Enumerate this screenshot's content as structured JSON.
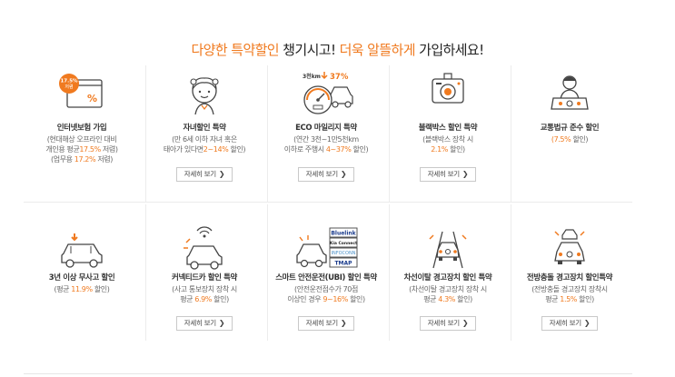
{
  "headline": {
    "part1": "다양한 특약할인",
    "part2": " 챙기시고! ",
    "part3": "더욱 알뜰하게",
    "part4": " 가입하세요!"
  },
  "colors": {
    "accent": "#f07a1f",
    "icon": "#444444"
  },
  "button_label": "자세히 보기",
  "row1": [
    {
      "icon": "internet-discount-badge-icon",
      "badge_line1": "17.5%",
      "badge_line2": "저렴",
      "title": "인터넷보험 가입",
      "d1_a": "(현대해상 오프라인 대비",
      "d2_a": "개인용 평균",
      "d2_b": "17.5%",
      "d2_c": " 저렴)",
      "d3_a": "(업무용 ",
      "d3_b": "17.2%",
      "d3_c": " 저렴)"
    },
    {
      "icon": "child-icon",
      "title": "자녀할인 특약",
      "d1_a": "(만 6세 이하 자녀 혹은",
      "d2_a": "태아가 있다면",
      "d2_b": "2~14%",
      "d2_c": " 할인)",
      "button": true
    },
    {
      "icon": "eco-mileage-car-icon",
      "eco_label": "3천km",
      "eco_pct": "37%",
      "title": "ECO 마일리지 특약",
      "d1_a": "(연간 3천~1만5천km",
      "d2_a": "이하로 주행시 ",
      "d2_b": "4~37%",
      "d2_c": " 할인)",
      "button": true
    },
    {
      "icon": "dashcam-icon",
      "title": "블랙박스 할인 특약",
      "d1_a": "(블랙박스 장착 시",
      "d2_b": "2.1%",
      "d2_c": " 할인)",
      "button": true
    },
    {
      "icon": "traffic-law-driver-icon",
      "title": "교통법규 준수 할인",
      "d1_b": "(7.5%",
      "d1_c": " 할인)"
    }
  ],
  "row2": [
    {
      "icon": "no-accident-car-icon",
      "title": "3년 이상 무사고 할인",
      "d1_a": "(평균 ",
      "d1_b": "11.9%",
      "d1_c": " 할인)"
    },
    {
      "icon": "connected-car-icon",
      "title": "커넥티드카 할인 특약",
      "d1_a": "(사고 통보장치 장착 시",
      "d2_a": "평균 ",
      "d2_b": "6.9%",
      "d2_c": " 할인)",
      "button": true
    },
    {
      "icon": "safe-driving-ubi-icon",
      "brands": [
        "Bluelink",
        "Kia Connect",
        "INFOCONN",
        "TMAP"
      ],
      "title": "스마트 안전운전(UBI) 할인 특약",
      "d1_a": "(안전운전점수가 70점",
      "d2_a": "이상인 경우 ",
      "d2_b": "9~16%",
      "d2_c": " 할인)",
      "button": true
    },
    {
      "icon": "lane-departure-warning-icon",
      "title": "차선이탈 경고장치 할인 특약",
      "d1_a": "(차선이탈 경고장치 장착 시",
      "d2_a": "평균 ",
      "d2_b": "4.3%",
      "d2_c": " 할인)",
      "button": true
    },
    {
      "icon": "forward-collision-warning-icon",
      "title": "전방충돌 경고장치 할인특약",
      "d1_a": "(전방충돌 경고장치 장착시",
      "d2_a": "평균 ",
      "d2_b": "1.5%",
      "d2_c": " 할인)",
      "button": true
    }
  ]
}
